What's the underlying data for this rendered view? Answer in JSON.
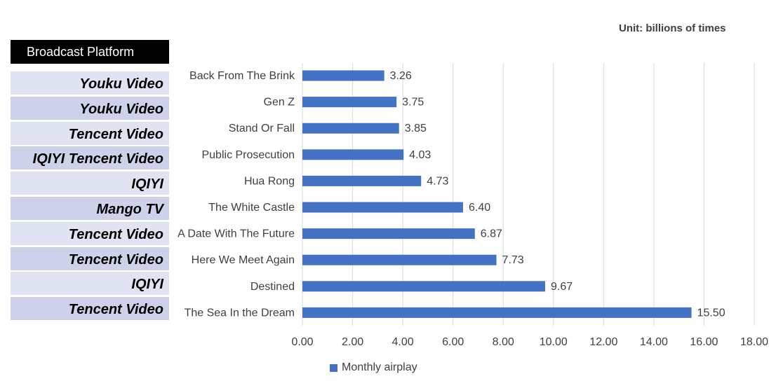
{
  "unit_label": "Unit: billions of times",
  "platform_header": "Broadcast Platform",
  "platforms": [
    "Youku Video",
    "Youku Video",
    "Tencent Video",
    "IQIYI  Tencent Video",
    "IQIYI",
    "Mango TV",
    "Tencent Video",
    "Tencent Video",
    "IQIYI",
    "Tencent Video"
  ],
  "colors": {
    "bar": "#4472c4",
    "grid": "#d9d9d9",
    "platform_odd": "#dfe3f2",
    "platform_even": "#cdd2ea"
  },
  "chart_data": {
    "type": "bar",
    "orientation": "horizontal",
    "categories": [
      "Back From The Brink",
      "Gen Z",
      "Stand Or Fall",
      "Public Prosecution",
      "Hua Rong",
      "The White Castle",
      "A Date With The Future",
      "Here We Meet Again",
      "Destined",
      "The Sea In the Dream"
    ],
    "series": [
      {
        "name": "Monthly airplay",
        "values": [
          3.26,
          3.75,
          3.85,
          4.03,
          4.73,
          6.4,
          6.87,
          7.73,
          9.67,
          15.5
        ]
      }
    ],
    "value_labels": [
      "3.26",
      "3.75",
      "3.85",
      "4.03",
      "4.73",
      "6.40",
      "6.87",
      "7.73",
      "9.67",
      "15.50"
    ],
    "xlim": [
      0,
      18
    ],
    "ticks": [
      "0.00",
      "2.00",
      "4.00",
      "6.00",
      "8.00",
      "10.00",
      "12.00",
      "14.00",
      "16.00",
      "18.00"
    ],
    "grid": true,
    "legend": "bottom"
  }
}
